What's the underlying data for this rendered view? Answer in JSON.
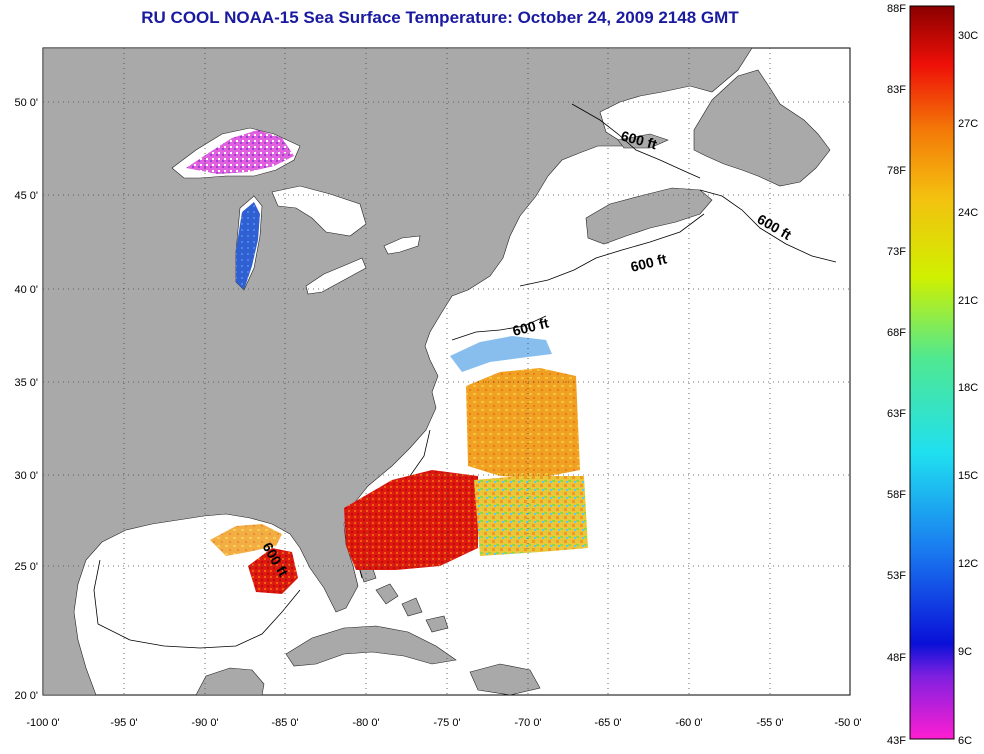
{
  "title": "RU COOL  NOAA-15  Sea Surface Temperature:  October 24, 2009 2148 GMT",
  "map": {
    "lat_labels": [
      "50 0'",
      "45 0'",
      "40 0'",
      "35 0'",
      "30 0'",
      "25 0'",
      "20 0'"
    ],
    "lon_labels": [
      "-100 0'",
      "-95 0'",
      "-90 0'",
      "-85 0'",
      "-80 0'",
      "-75 0'",
      "-70 0'",
      "-65 0'",
      "-60 0'",
      "-55 0'",
      "-50 0'"
    ],
    "isobath_label": "600 ft",
    "land_color": "#a9a9a9",
    "ocean_color": "#ffffff"
  },
  "colorbar": {
    "fahrenheit_labels": [
      "88F",
      "83F",
      "78F",
      "73F",
      "68F",
      "63F",
      "58F",
      "53F",
      "48F",
      "43F"
    ],
    "celsius_labels": [
      "30C",
      "27C",
      "24C",
      "21C",
      "18C",
      "15C",
      "12C",
      "9C",
      "6C"
    ]
  }
}
